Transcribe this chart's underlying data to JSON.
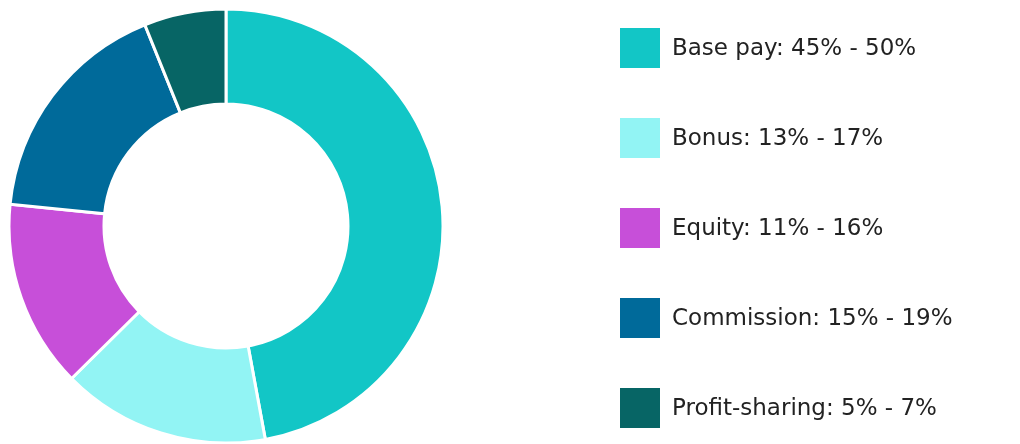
{
  "chart_data": {
    "type": "donut",
    "categories": [
      "Base pay: 45% - 50%",
      "Bonus: 13% - 17%",
      "Equity: 11% - 16%",
      "Commission: 15% - 19%",
      "Profit-sharing: 5% - 7%"
    ],
    "values": [
      47.1,
      15.5,
      14.0,
      17.3,
      6.1
    ],
    "colors": [
      "#12c6c6",
      "#92f4f4",
      "#c74fd9",
      "#006a9a",
      "#076565"
    ],
    "legend": "right"
  }
}
